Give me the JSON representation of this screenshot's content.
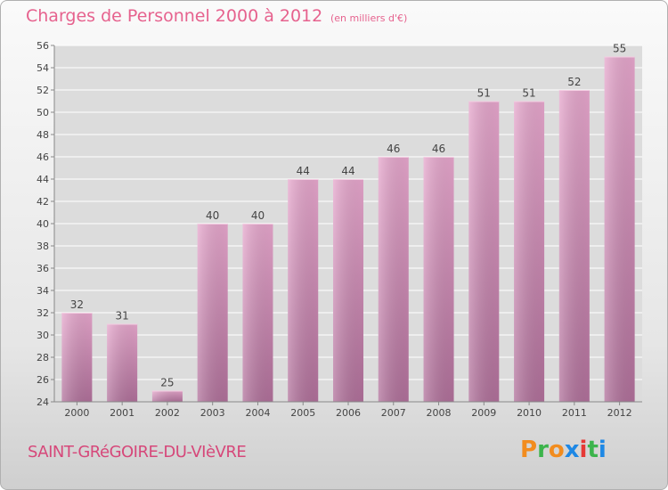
{
  "header": {
    "title": "Charges de Personnel 2000 à 2012",
    "subtitle": "(en milliers d'€)"
  },
  "footer": {
    "location": "SAINT-GRéGOIRE-DU-VIèVRE",
    "logo_letters": [
      "P",
      "r",
      "o",
      "x",
      "i",
      "t",
      "i"
    ]
  },
  "colors": {
    "title": "#e6628e",
    "bar_light": "#e6a6cc",
    "bar_dark": "#b0709a",
    "logo": [
      "#f28c1e",
      "#3cb44b",
      "#f28c1e",
      "#1e88e5",
      "#e53935",
      "#3cb44b",
      "#1e88e5"
    ]
  },
  "chart_data": {
    "type": "bar",
    "categories": [
      "2000",
      "2001",
      "2002",
      "2003",
      "2004",
      "2005",
      "2006",
      "2007",
      "2008",
      "2009",
      "2010",
      "2011",
      "2012"
    ],
    "values": [
      32,
      31,
      25,
      40,
      40,
      44,
      44,
      46,
      46,
      51,
      51,
      52,
      55
    ],
    "ylim": [
      24,
      56
    ],
    "yticks": [
      24,
      26,
      28,
      30,
      32,
      34,
      36,
      38,
      40,
      42,
      44,
      46,
      48,
      50,
      52,
      54,
      56
    ],
    "grid": true,
    "data_labels": true
  }
}
